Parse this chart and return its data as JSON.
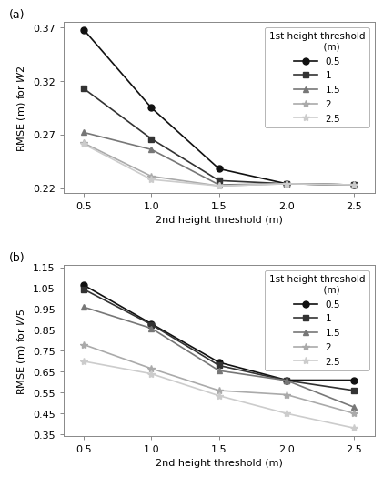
{
  "x": [
    0.5,
    1.0,
    1.5,
    2.0,
    2.5
  ],
  "panel_a": {
    "title_label": "(a)",
    "ylabel": "RMSE (m) for $\\mathit{W}$2",
    "xlabel": "2nd height threshold (m)",
    "ylim": [
      0.215,
      0.375
    ],
    "yticks": [
      0.22,
      0.27,
      0.32,
      0.37
    ],
    "series": [
      {
        "label": "0.5",
        "marker": "o",
        "color": "#111111",
        "lw": 1.2,
        "ms": 5,
        "values": [
          0.368,
          0.295,
          0.238,
          0.224,
          0.223
        ]
      },
      {
        "label": "1",
        "marker": "s",
        "color": "#333333",
        "lw": 1.2,
        "ms": 5,
        "values": [
          0.313,
          0.266,
          0.227,
          0.224,
          0.223
        ]
      },
      {
        "label": "1.5",
        "marker": "^",
        "color": "#777777",
        "lw": 1.2,
        "ms": 5,
        "values": [
          0.272,
          0.256,
          0.223,
          0.224,
          0.223
        ]
      },
      {
        "label": "2",
        "marker": "*",
        "color": "#aaaaaa",
        "lw": 1.2,
        "ms": 6,
        "values": [
          0.262,
          0.231,
          0.222,
          0.224,
          0.223
        ]
      },
      {
        "label": "2.5",
        "marker": "*",
        "color": "#cccccc",
        "lw": 1.2,
        "ms": 6,
        "values": [
          0.261,
          0.228,
          0.222,
          0.224,
          0.223
        ]
      }
    ],
    "legend_title": "1st height threshold\n          (m)"
  },
  "panel_b": {
    "title_label": "(b)",
    "ylabel": "RMSE (m) for $\\mathit{W}$5",
    "xlabel": "2nd height threshold (m)",
    "ylim": [
      0.34,
      1.16
    ],
    "yticks": [
      0.35,
      0.45,
      0.55,
      0.65,
      0.75,
      0.85,
      0.95,
      1.05,
      1.15
    ],
    "series": [
      {
        "label": "0.5",
        "marker": "o",
        "color": "#111111",
        "lw": 1.2,
        "ms": 5,
        "values": [
          1.065,
          0.88,
          0.695,
          0.61,
          0.61
        ]
      },
      {
        "label": "1",
        "marker": "s",
        "color": "#333333",
        "lw": 1.2,
        "ms": 5,
        "values": [
          1.045,
          0.876,
          0.68,
          0.608,
          0.56
        ]
      },
      {
        "label": "1.5",
        "marker": "^",
        "color": "#777777",
        "lw": 1.2,
        "ms": 5,
        "values": [
          0.96,
          0.858,
          0.655,
          0.608,
          0.48
        ]
      },
      {
        "label": "2",
        "marker": "*",
        "color": "#aaaaaa",
        "lw": 1.2,
        "ms": 6,
        "values": [
          0.78,
          0.665,
          0.56,
          0.54,
          0.45
        ]
      },
      {
        "label": "2.5",
        "marker": "*",
        "color": "#cccccc",
        "lw": 1.2,
        "ms": 6,
        "values": [
          0.7,
          0.64,
          0.535,
          0.45,
          0.38
        ]
      }
    ],
    "legend_title": "1st height threshold\n          (m)"
  },
  "background_color": "#ffffff",
  "xtick_labels": [
    "0.5",
    "1.0",
    "1.5",
    "2.0",
    "2.5"
  ]
}
